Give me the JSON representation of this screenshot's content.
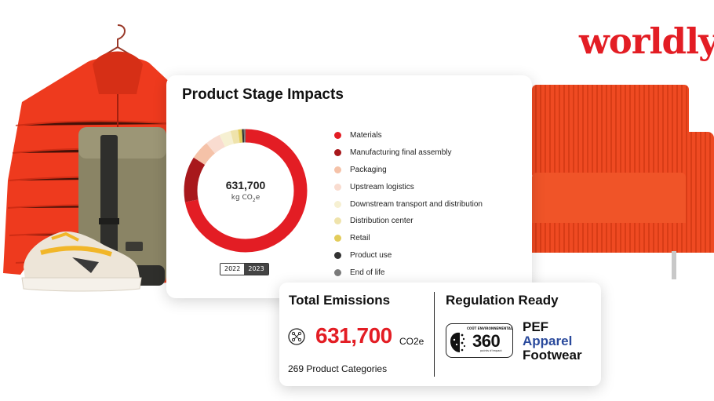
{
  "brand": {
    "logo_text": "worldly",
    "color": "#e31d24"
  },
  "chart_card": {
    "title": "Product Stage Impacts",
    "center_value": "631,700",
    "center_unit_main": "kg CO",
    "center_unit_sub": "2",
    "center_unit_tail": "e",
    "years": [
      "2022",
      "2023"
    ],
    "active_year": "2023"
  },
  "chart_data": {
    "type": "pie",
    "title": "Product Stage Impacts",
    "total": "631,700 kg CO2e",
    "series": [
      {
        "name": "Materials",
        "color": "#e31d24",
        "share": 0.72
      },
      {
        "name": "Manufacturing final assembly",
        "color": "#a8181c",
        "share": 0.12
      },
      {
        "name": "Packaging",
        "color": "#f5c2a8",
        "share": 0.05
      },
      {
        "name": "Upstream logistics",
        "color": "#f9dcd0",
        "share": 0.04
      },
      {
        "name": "Downstream transport and distribution",
        "color": "#f6f0d2",
        "share": 0.03
      },
      {
        "name": "Distribution center",
        "color": "#efe3ab",
        "share": 0.02
      },
      {
        "name": "Retail",
        "color": "#e3cc5a",
        "share": 0.01
      },
      {
        "name": "Product use",
        "color": "#333333",
        "share": 0.005
      },
      {
        "name": "End of life",
        "color": "#7b7b7b",
        "share": 0.005
      }
    ],
    "legend_placement": "right"
  },
  "stats": {
    "emissions_title": "Total Emissions",
    "emissions_value": "631,700",
    "emissions_unit": "CO2e",
    "categories": "269 Product Categories",
    "regulation_title": "Regulation Ready",
    "badge_top": "COÛT ENVIRONNEMENTAL",
    "badge_number": "360",
    "badge_sub": "points d'impact",
    "pef_line1": "PEF",
    "pef_line2": "Apparel",
    "pef_line3": "Footwear"
  }
}
